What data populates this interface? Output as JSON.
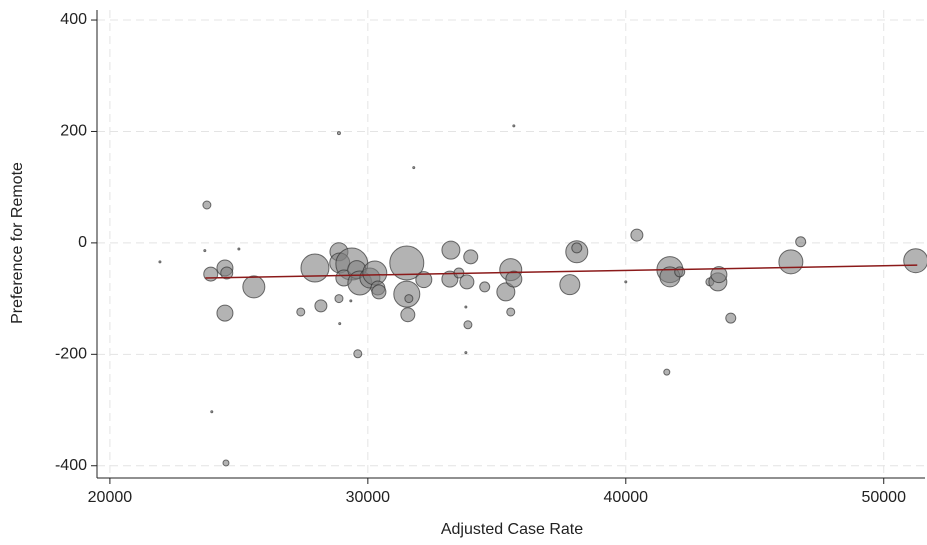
{
  "chart_data": {
    "type": "scatter",
    "x_label": "Adjusted Case Rate",
    "y_label": "Preference for Remote",
    "x": [
      21940,
      23760,
      23680,
      23910,
      24460,
      24530,
      24460,
      23950,
      24500,
      25000,
      25580,
      27400,
      27950,
      28180,
      28880,
      28880,
      28910,
      28880,
      28910,
      29380,
      29070,
      29570,
      29690,
      29340,
      29610,
      30080,
      30270,
      30390,
      30430,
      31510,
      31510,
      31550,
      31590,
      31780,
      32170,
      33220,
      33180,
      33530,
      33840,
      33990,
      33800,
      33880,
      33800,
      34530,
      35350,
      35540,
      35660,
      35540,
      35660,
      37830,
      38100,
      38100,
      40000,
      40430,
      41710,
      41710,
      41590,
      42090,
      43260,
      43570,
      43610,
      44070,
      46400,
      46780,
      51240
    ],
    "values": [
      -34,
      68,
      -14,
      -56,
      -45,
      -54,
      -126,
      -303,
      -395,
      -11,
      -79,
      -124,
      -45,
      -113,
      197,
      -16,
      -36,
      -100,
      -145,
      -38,
      -63,
      -48,
      -72,
      -104,
      -199,
      -63,
      -54,
      -81,
      -88,
      -36,
      -92,
      -129,
      -100,
      135,
      -66,
      -13,
      -65,
      -54,
      -70,
      -25,
      -115,
      -147,
      -197,
      -79,
      -88,
      -48,
      -65,
      -124,
      210,
      -75,
      -16,
      -9,
      -70,
      14,
      -48,
      -61,
      -232,
      -52,
      -70,
      -70,
      -57,
      -135,
      -34,
      2,
      -32
    ],
    "sizes": [
      1,
      4,
      1,
      7,
      8,
      6,
      8,
      1,
      3,
      1,
      11,
      4,
      14,
      6,
      1.5,
      9,
      10,
      4,
      1,
      16,
      8,
      9,
      12,
      1,
      4,
      10,
      12,
      7,
      7,
      17,
      13,
      7,
      4,
      1,
      8,
      9,
      8,
      5,
      7,
      7,
      1,
      4,
      1,
      5,
      9,
      11,
      8,
      4,
      1,
      10,
      11,
      5,
      1,
      6,
      13,
      10,
      3,
      5,
      4,
      9,
      8,
      5,
      12,
      5,
      12
    ],
    "color": "#808080",
    "fit_line": {
      "x": [
        23700,
        51300
      ],
      "y": [
        -63,
        -40
      ],
      "color": "#8b1a1a"
    },
    "xlim": [
      19500,
      51600
    ],
    "ylim": [
      -422,
      418
    ],
    "xticks": [
      20000,
      30000,
      40000,
      50000
    ],
    "yticks": [
      -400,
      -200,
      0,
      200,
      400
    ],
    "grid": true
  }
}
